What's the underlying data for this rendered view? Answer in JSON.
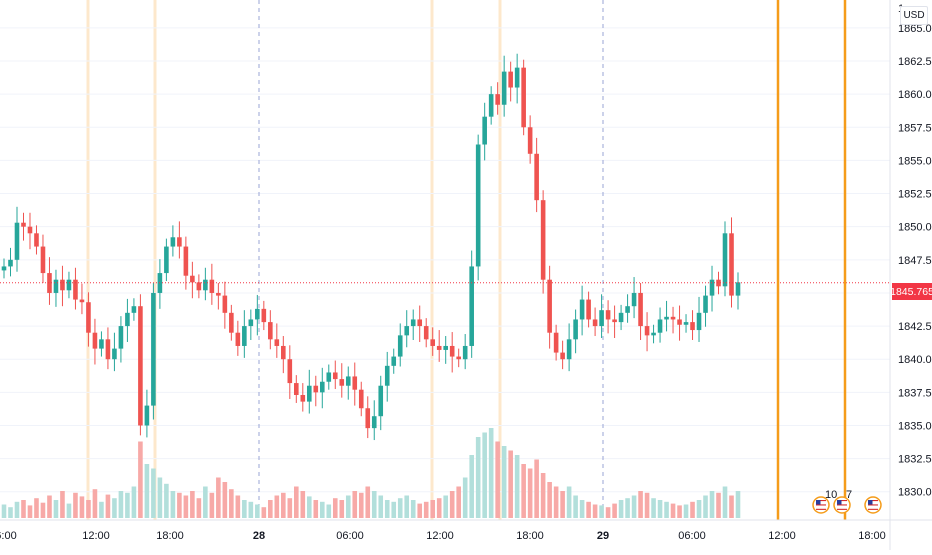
{
  "price_axis": {
    "currency": "USD",
    "ticks": [
      "1865.000",
      "1862.500",
      "1860.000",
      "1857.500",
      "1855.000",
      "1852.500",
      "1850.000",
      "1847.500",
      "1845.000",
      "1842.500",
      "1840.000",
      "1837.500",
      "1835.000",
      "1832.500",
      "1830.000"
    ],
    "tick_values": [
      1865,
      1862.5,
      1860,
      1857.5,
      1855,
      1852.5,
      1850,
      1847.5,
      1845,
      1842.5,
      1840,
      1837.5,
      1835,
      1832.5,
      1830
    ],
    "top_partial_label": "1"
  },
  "time_axis": {
    "ticks": [
      {
        "label": "6:00",
        "bold": false
      },
      {
        "label": "12:00",
        "bold": false
      },
      {
        "label": "18:00",
        "bold": false
      },
      {
        "label": "28",
        "bold": true
      },
      {
        "label": "06:00",
        "bold": false
      },
      {
        "label": "12:00",
        "bold": false
      },
      {
        "label": "18:00",
        "bold": false
      },
      {
        "label": "29",
        "bold": true
      },
      {
        "label": "06:00",
        "bold": false
      },
      {
        "label": "12:00",
        "bold": false
      },
      {
        "label": "18:00",
        "bold": false
      }
    ]
  },
  "last_price": {
    "value": "1845.765",
    "color": "#f23645"
  },
  "colors": {
    "up": "#26a69a",
    "down": "#ef5350",
    "vol_up": "#b2dfdb",
    "vol_down": "#f7a9a7",
    "orange": "#f59c1a",
    "session_highlight": "#fde8cc",
    "day_divider": "#9aa4d6",
    "grid": "#f0f3fa"
  },
  "event_markers": [
    {
      "icon": "us-flag-icon",
      "count": "10"
    },
    {
      "icon": "us-flag-icon",
      "count": "7"
    },
    {
      "icon": "us-flag-icon",
      "count": ""
    }
  ],
  "chart_data": {
    "type": "candlestick",
    "series": [
      {
        "name": "",
        "type": "ohlc"
      },
      {
        "name": "",
        "type": "volume"
      }
    ],
    "ylim": [
      1829,
      1866.5
    ],
    "x": [
      "06:00",
      "12:00",
      "18:00",
      "28",
      "06:00",
      "12:00",
      "18:00",
      "29",
      "06:00",
      "12:00",
      "18:00"
    ],
    "close_path": [
      1847.0,
      1847.5,
      1850.3,
      1850.0,
      1849.5,
      1848.5,
      1846.5,
      1845.0,
      1846.0,
      1845.2,
      1846.0,
      1844.5,
      1844.3,
      1842.0,
      1840.8,
      1841.5,
      1840.0,
      1840.8,
      1842.5,
      1843.5,
      1844.0,
      1835.0,
      1836.5,
      1845.0,
      1846.5,
      1848.5,
      1849.2,
      1848.5,
      1846.3,
      1845.8,
      1845.2,
      1846.0,
      1845.0,
      1844.8,
      1843.5,
      1842.0,
      1841.0,
      1842.5,
      1843.0,
      1843.8,
      1842.8,
      1841.5,
      1841.0,
      1840.0,
      1838.2,
      1837.3,
      1836.8,
      1838.0,
      1837.5,
      1838.3,
      1839.0,
      1838.5,
      1838.0,
      1838.7,
      1837.7,
      1836.3,
      1834.8,
      1835.7,
      1838.0,
      1839.5,
      1840.2,
      1841.8,
      1842.5,
      1843.0,
      1842.5,
      1841.5,
      1841.0,
      1840.7,
      1841.0,
      1840.2,
      1840.0,
      1841.0,
      1847.0,
      1856.2,
      1858.3,
      1860.0,
      1859.2,
      1861.7,
      1860.5,
      1862.0,
      1857.5,
      1855.5,
      1852.0,
      1846.0,
      1842.0,
      1840.5,
      1840.0,
      1841.5,
      1843.0,
      1844.5,
      1843.0,
      1842.5,
      1843.7,
      1843.0,
      1842.8,
      1843.5,
      1844.0,
      1845.0,
      1842.5,
      1841.8,
      1842.0,
      1843.0,
      1843.2,
      1843.0,
      1842.6,
      1842.8,
      1842.2,
      1843.5,
      1844.8,
      1846.0,
      1845.5,
      1849.5,
      1844.8,
      1845.8
    ],
    "volume_relative": [
      0.15,
      0.12,
      0.18,
      0.2,
      0.14,
      0.22,
      0.17,
      0.25,
      0.2,
      0.3,
      0.16,
      0.28,
      0.24,
      0.2,
      0.32,
      0.18,
      0.26,
      0.22,
      0.3,
      0.28,
      0.35,
      0.85,
      0.6,
      0.55,
      0.45,
      0.38,
      0.3,
      0.28,
      0.25,
      0.3,
      0.22,
      0.35,
      0.28,
      0.45,
      0.4,
      0.32,
      0.25,
      0.2,
      0.18,
      0.15,
      0.12,
      0.2,
      0.25,
      0.28,
      0.22,
      0.35,
      0.3,
      0.24,
      0.2,
      0.18,
      0.15,
      0.22,
      0.2,
      0.25,
      0.3,
      0.28,
      0.35,
      0.3,
      0.25,
      0.2,
      0.18,
      0.22,
      0.25,
      0.2,
      0.16,
      0.18,
      0.2,
      0.22,
      0.25,
      0.3,
      0.35,
      0.45,
      0.7,
      0.9,
      0.95,
      1.0,
      0.85,
      0.8,
      0.75,
      0.7,
      0.6,
      0.55,
      0.65,
      0.5,
      0.4,
      0.35,
      0.3,
      0.35,
      0.25,
      0.2,
      0.18,
      0.15,
      0.14,
      0.12,
      0.16,
      0.2,
      0.22,
      0.25,
      0.3,
      0.28,
      0.22,
      0.2,
      0.18,
      0.16,
      0.14,
      0.15,
      0.18,
      0.2,
      0.25,
      0.3,
      0.28,
      0.35,
      0.25,
      0.3
    ]
  }
}
